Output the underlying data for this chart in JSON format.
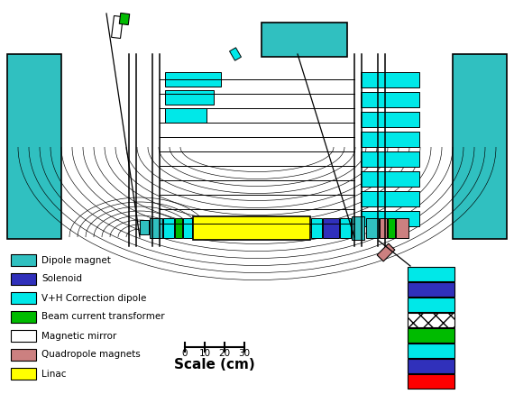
{
  "bg": "#ffffff",
  "dipole": "#30C0C0",
  "solenoid": "#3030BB",
  "correction": "#00E8E8",
  "bct": "#00BB00",
  "mirror": "#ffffff",
  "quad": "#CC8080",
  "linac": "#FFFF00",
  "red": "#FF0000",
  "legend": [
    {
      "label": "Dipole magnet",
      "color": "#30C0C0"
    },
    {
      "label": "Solenoid",
      "color": "#3030BB"
    },
    {
      "label": "V+H Correction dipole",
      "color": "#00E8E8"
    },
    {
      "label": "Beam current transformer",
      "color": "#00BB00"
    },
    {
      "label": "Magnetic mirror",
      "color": "#ffffff"
    },
    {
      "label": "Quadropole magnets",
      "color": "#CC8080"
    },
    {
      "label": "Linac",
      "color": "#FFFF00"
    }
  ]
}
